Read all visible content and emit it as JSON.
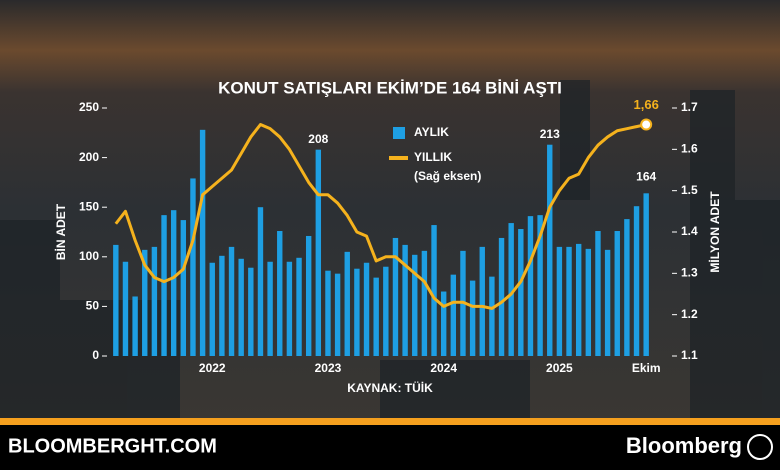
{
  "chart_data": {
    "type": "bar-line",
    "title": "KONUT SATIŞLARI EKİM’DE 164 BİNİ AŞTI",
    "source": "KAYNAK: TÜİK",
    "ylabel": "BİN ADET",
    "y2label": "MİLYON ADET",
    "legend_note": "(Sağ eksen)",
    "categories": [
      null,
      null,
      null,
      null,
      null,
      null,
      null,
      null,
      null,
      null,
      "2022",
      null,
      null,
      null,
      null,
      null,
      null,
      null,
      null,
      null,
      null,
      null,
      "2023",
      null,
      null,
      null,
      null,
      null,
      null,
      null,
      null,
      null,
      null,
      null,
      "2024",
      null,
      null,
      null,
      null,
      null,
      null,
      null,
      null,
      null,
      null,
      null,
      "2025",
      null,
      null,
      null,
      null,
      null,
      null,
      null,
      null,
      "Ekim"
    ],
    "series": [
      {
        "name": "AYLIK",
        "color": "#1e9fe3",
        "values": [
          112,
          95,
          60,
          107,
          110,
          142,
          147,
          137,
          179,
          228,
          94,
          101,
          110,
          98,
          89,
          150,
          95,
          126,
          95,
          99,
          121,
          208,
          86,
          83,
          105,
          88,
          94,
          79,
          90,
          119,
          112,
          102,
          106,
          132,
          65,
          82,
          106,
          76,
          110,
          80,
          119,
          134,
          128,
          141,
          142,
          213,
          110,
          110,
          113,
          108,
          126,
          107,
          126,
          138,
          151,
          164
        ],
        "value_labels": [
          null,
          null,
          null,
          null,
          null,
          null,
          null,
          null,
          null,
          null,
          null,
          null,
          null,
          null,
          null,
          null,
          null,
          null,
          null,
          null,
          null,
          "208",
          null,
          null,
          null,
          null,
          null,
          null,
          null,
          null,
          null,
          null,
          null,
          null,
          null,
          null,
          null,
          null,
          null,
          null,
          null,
          null,
          null,
          null,
          null,
          "213",
          null,
          null,
          null,
          null,
          null,
          null,
          null,
          null,
          null,
          "164"
        ]
      },
      {
        "name": "YILLIK",
        "color": "#f5b21d",
        "axis": "y2",
        "values": [
          1.42,
          1.45,
          1.38,
          1.32,
          1.29,
          1.28,
          1.29,
          1.31,
          1.38,
          1.49,
          1.51,
          1.53,
          1.55,
          1.59,
          1.63,
          1.66,
          1.65,
          1.63,
          1.6,
          1.56,
          1.52,
          1.49,
          1.49,
          1.47,
          1.44,
          1.4,
          1.39,
          1.33,
          1.34,
          1.34,
          1.32,
          1.3,
          1.28,
          1.24,
          1.22,
          1.23,
          1.23,
          1.22,
          1.22,
          1.215,
          1.23,
          1.25,
          1.28,
          1.33,
          1.39,
          1.46,
          1.5,
          1.53,
          1.54,
          1.58,
          1.61,
          1.63,
          1.645,
          1.65,
          1.655,
          1.66
        ],
        "value_labels": [
          null,
          null,
          null,
          null,
          null,
          null,
          null,
          null,
          null,
          null,
          null,
          null,
          null,
          null,
          null,
          null,
          null,
          null,
          null,
          null,
          null,
          null,
          null,
          null,
          null,
          null,
          null,
          null,
          null,
          null,
          null,
          null,
          null,
          null,
          null,
          null,
          null,
          null,
          null,
          null,
          null,
          null,
          null,
          null,
          null,
          null,
          null,
          null,
          null,
          null,
          null,
          null,
          null,
          null,
          null,
          "1,66"
        ]
      }
    ],
    "ylim": [
      0,
      250
    ],
    "yticks": [
      0,
      50,
      100,
      150,
      200,
      250
    ],
    "y2lim": [
      1.1,
      1.7
    ],
    "y2ticks": [
      1.1,
      1.2,
      1.3,
      1.4,
      1.5,
      1.6,
      1.7
    ]
  },
  "footer": {
    "site": "BLOOMBERGHT.COM",
    "brand": "Bloomberg"
  }
}
